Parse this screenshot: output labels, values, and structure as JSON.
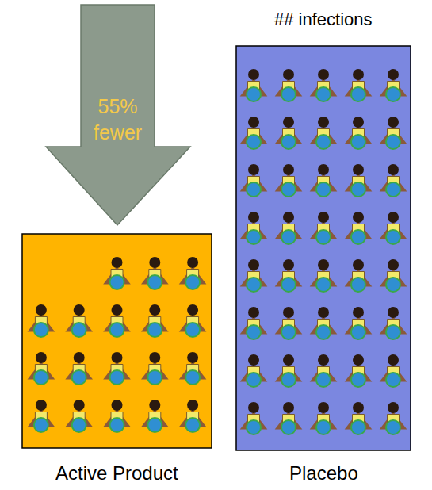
{
  "chart_data": {
    "type": "pictogram",
    "title": "## infections",
    "categories": [
      "Active Product",
      "Placebo"
    ],
    "values": [
      18,
      40
    ],
    "colors": [
      "#ffb400",
      "#7b87e0"
    ],
    "annotation": "55% fewer",
    "tick_labels": false
  }
}
